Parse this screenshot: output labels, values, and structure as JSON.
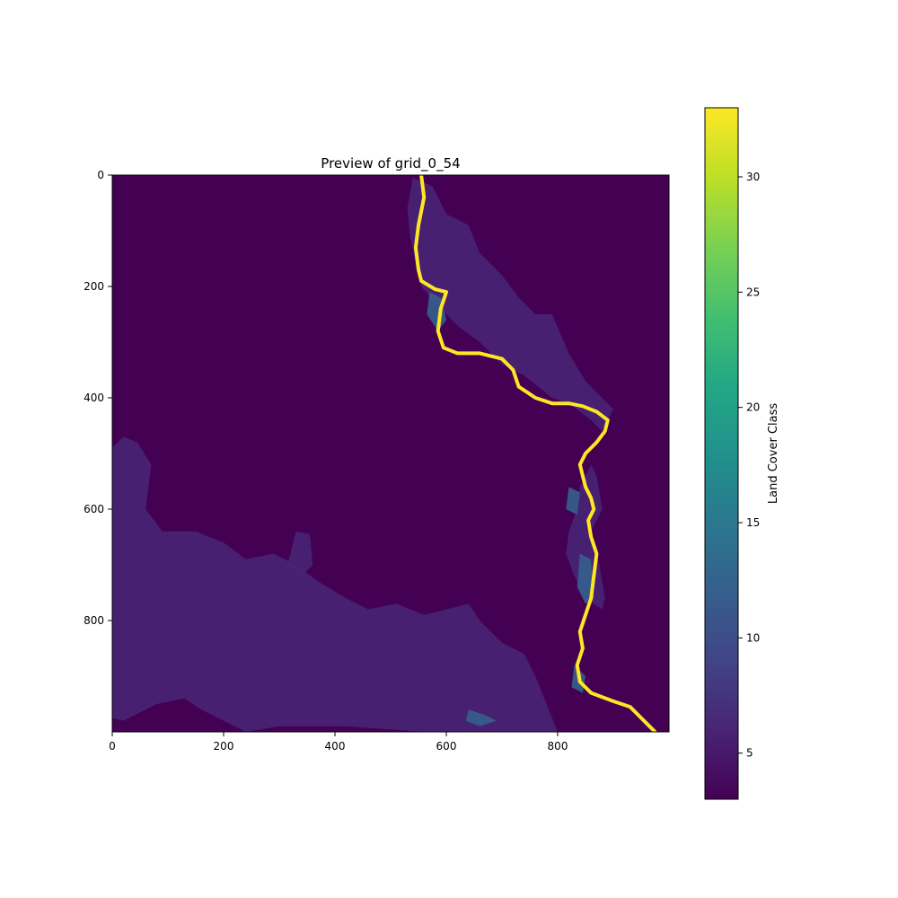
{
  "chart_data": {
    "type": "heatmap",
    "title": "Preview of grid_0_54",
    "xlabel": "",
    "ylabel": "",
    "xlim": [
      0,
      1000
    ],
    "ylim": [
      1000,
      0
    ],
    "x_ticks": [
      0,
      200,
      400,
      600,
      800
    ],
    "y_ticks": [
      0,
      200,
      400,
      600,
      800
    ],
    "background_class_value": 3,
    "colorbar": {
      "label": "Land Cover Class",
      "range": [
        3,
        33
      ],
      "ticks": [
        5,
        10,
        15,
        20,
        25,
        30
      ],
      "colormap": "viridis"
    },
    "regions": [
      {
        "class_value": 6,
        "description": "scattered low-class patches",
        "polygons": [
          [
            [
              0,
              490
            ],
            [
              20,
              470
            ],
            [
              45,
              480
            ],
            [
              70,
              520
            ],
            [
              60,
              600
            ],
            [
              90,
              640
            ],
            [
              150,
              640
            ],
            [
              200,
              660
            ],
            [
              240,
              690
            ],
            [
              290,
              680
            ],
            [
              330,
              700
            ],
            [
              370,
              730
            ],
            [
              420,
              760
            ],
            [
              460,
              780
            ],
            [
              510,
              770
            ],
            [
              560,
              790
            ],
            [
              600,
              780
            ],
            [
              640,
              770
            ],
            [
              660,
              800
            ],
            [
              700,
              840
            ],
            [
              740,
              860
            ],
            [
              760,
              900
            ],
            [
              780,
              950
            ],
            [
              800,
              1000
            ],
            [
              560,
              1000
            ],
            [
              420,
              990
            ],
            [
              300,
              990
            ],
            [
              240,
              1000
            ],
            [
              160,
              960
            ],
            [
              130,
              940
            ],
            [
              80,
              950
            ],
            [
              40,
              970
            ],
            [
              20,
              980
            ],
            [
              0,
              975
            ]
          ],
          [
            [
              540,
              5
            ],
            [
              575,
              20
            ],
            [
              600,
              70
            ],
            [
              640,
              90
            ],
            [
              660,
              140
            ],
            [
              700,
              180
            ],
            [
              730,
              220
            ],
            [
              760,
              250
            ],
            [
              790,
              250
            ],
            [
              820,
              320
            ],
            [
              850,
              370
            ],
            [
              880,
              400
            ],
            [
              900,
              420
            ],
            [
              880,
              460
            ],
            [
              860,
              440
            ],
            [
              820,
              410
            ],
            [
              790,
              400
            ],
            [
              740,
              360
            ],
            [
              700,
              340
            ],
            [
              660,
              300
            ],
            [
              620,
              270
            ],
            [
              580,
              230
            ],
            [
              555,
              200
            ],
            [
              545,
              160
            ],
            [
              535,
              110
            ],
            [
              530,
              60
            ]
          ],
          [
            [
              860,
              520
            ],
            [
              870,
              540
            ],
            [
              880,
              600
            ],
            [
              860,
              640
            ],
            [
              875,
              700
            ],
            [
              885,
              760
            ],
            [
              880,
              780
            ],
            [
              850,
              760
            ],
            [
              830,
              720
            ],
            [
              815,
              680
            ],
            [
              820,
              640
            ],
            [
              835,
              600
            ],
            [
              840,
              560
            ]
          ],
          [
            [
              330,
              640
            ],
            [
              355,
              645
            ],
            [
              360,
              700
            ],
            [
              340,
              720
            ],
            [
              315,
              700
            ]
          ]
        ]
      },
      {
        "class_value": 12,
        "description": "mid-class channel margins",
        "polygons": [
          [
            [
              570,
              210
            ],
            [
              590,
              220
            ],
            [
              600,
              260
            ],
            [
              585,
              280
            ],
            [
              565,
              250
            ]
          ],
          [
            [
              820,
              560
            ],
            [
              840,
              570
            ],
            [
              835,
              610
            ],
            [
              815,
              600
            ]
          ],
          [
            [
              840,
              680
            ],
            [
              860,
              690
            ],
            [
              865,
              760
            ],
            [
              850,
              770
            ],
            [
              835,
              740
            ]
          ],
          [
            [
              830,
              880
            ],
            [
              850,
              900
            ],
            [
              845,
              930
            ],
            [
              825,
              920
            ]
          ],
          [
            [
              640,
              960
            ],
            [
              670,
              970
            ],
            [
              690,
              980
            ],
            [
              660,
              990
            ],
            [
              635,
              980
            ]
          ]
        ]
      }
    ],
    "river_class_value": 33,
    "river_path": [
      [
        555,
        0
      ],
      [
        560,
        40
      ],
      [
        550,
        90
      ],
      [
        545,
        130
      ],
      [
        550,
        170
      ],
      [
        555,
        190
      ],
      [
        580,
        205
      ],
      [
        600,
        210
      ],
      [
        590,
        240
      ],
      [
        585,
        280
      ],
      [
        595,
        310
      ],
      [
        620,
        320
      ],
      [
        660,
        320
      ],
      [
        700,
        330
      ],
      [
        720,
        350
      ],
      [
        730,
        380
      ],
      [
        760,
        400
      ],
      [
        790,
        410
      ],
      [
        820,
        410
      ],
      [
        845,
        415
      ],
      [
        870,
        425
      ],
      [
        890,
        440
      ],
      [
        885,
        460
      ],
      [
        870,
        480
      ],
      [
        850,
        500
      ],
      [
        840,
        520
      ],
      [
        845,
        540
      ],
      [
        850,
        560
      ],
      [
        860,
        580
      ],
      [
        865,
        600
      ],
      [
        855,
        620
      ],
      [
        860,
        650
      ],
      [
        870,
        680
      ],
      [
        865,
        720
      ],
      [
        860,
        760
      ],
      [
        850,
        790
      ],
      [
        840,
        820
      ],
      [
        845,
        850
      ],
      [
        835,
        880
      ],
      [
        840,
        910
      ],
      [
        860,
        930
      ],
      [
        900,
        945
      ],
      [
        930,
        955
      ],
      [
        950,
        975
      ],
      [
        965,
        990
      ],
      [
        975,
        1000
      ]
    ]
  }
}
